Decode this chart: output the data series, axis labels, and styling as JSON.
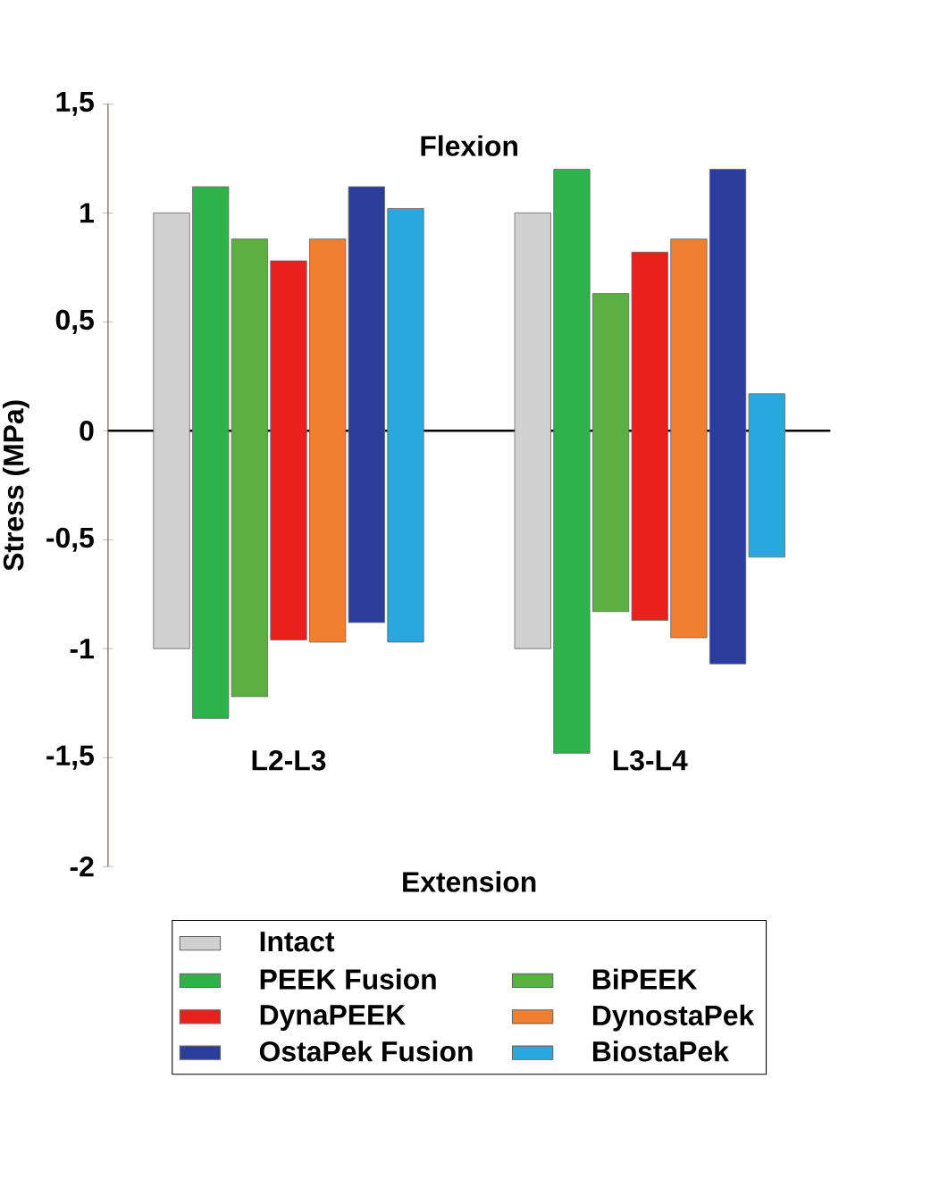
{
  "chart_data": {
    "type": "bar",
    "ylabel": "Stress (MPa)",
    "categories": [
      "L2-L3",
      "L3-L4"
    ],
    "ylim": [
      -2,
      1.5
    ],
    "yticks": [
      {
        "value": -2,
        "label": "-2"
      },
      {
        "value": -1.5,
        "label": "-1,5"
      },
      {
        "value": -1,
        "label": "-1"
      },
      {
        "value": -0.5,
        "label": "-0,5"
      },
      0,
      {
        "value": 0.5,
        "label": "0,5"
      },
      1,
      {
        "value": 1.5,
        "label": "1,5"
      }
    ],
    "annotations": [
      "Flexion",
      "Extension"
    ],
    "legend": "bottom",
    "series": [
      {
        "name": "Intact",
        "color": "#d0d0d0",
        "base": [
          -1.0,
          -1.0
        ],
        "values": [
          2.0,
          2.0
        ]
      },
      {
        "name": "PEEK Fusion",
        "color": "#2db34a",
        "base": [
          -1.32,
          -1.48
        ],
        "values": [
          2.44,
          2.68
        ]
      },
      {
        "name": "BiPEEK",
        "color": "#5cb043",
        "base": [
          -1.22,
          -0.83
        ],
        "values": [
          2.1,
          1.46
        ]
      },
      {
        "name": "DynaPEEK",
        "color": "#e8201e",
        "base": [
          -0.96,
          -0.87
        ],
        "values": [
          1.74,
          1.69
        ]
      },
      {
        "name": "DynostaPek",
        "color": "#f08030",
        "base": [
          -0.97,
          -0.95
        ],
        "values": [
          1.85,
          1.83
        ]
      },
      {
        "name": "OstaPek Fusion",
        "color": "#2a3d9c",
        "base": [
          -0.88,
          -1.07
        ],
        "values": [
          2.0,
          2.27
        ]
      },
      {
        "name": "BiostaPek",
        "color": "#29a8e0",
        "base": [
          -0.97,
          -0.58
        ],
        "values": [
          1.99,
          0.75
        ]
      }
    ]
  }
}
